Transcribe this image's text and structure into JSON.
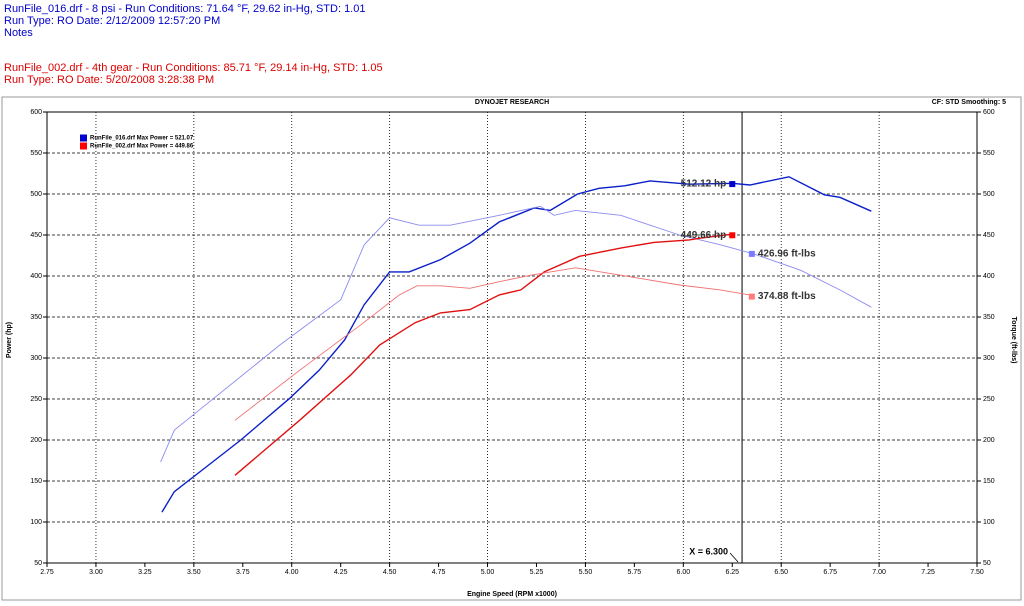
{
  "header": {
    "lines": [
      {
        "text": "RunFile_016.drf - 8 psi  -  Run Conditions: 71.64 °F, 29.62 in-Hg, STD: 1.01",
        "color": "#0000cc"
      },
      {
        "text": "Run Type: RO  Date: 2/12/2009 12:57:20 PM",
        "color": "#0000cc"
      },
      {
        "text": "Notes",
        "color": "#0000cc"
      },
      {
        "text": "RunFile_002.drf - 4th gear  -  Run Conditions: 85.71 °F, 29.14 in-Hg, STD: 1.05",
        "color": "#dd0000"
      },
      {
        "text": "Run Type: RO  Date: 5/20/2008 3:28:38 PM",
        "color": "#dd0000"
      }
    ]
  },
  "chart_data": {
    "type": "line",
    "title": "DYNOJET RESEARCH",
    "subtitle": "CF: STD  Smoothing: 5",
    "x_label": "Engine Speed (RPM x1000)",
    "y_label": "Power (hp)",
    "y2_label": "Torque (ft-lbs)",
    "xlim": [
      2.75,
      7.5
    ],
    "xticks": [
      2.75,
      {
        "value": 3,
        "label": "3.00"
      },
      3.25,
      {
        "value": 3.5,
        "label": "3.50"
      },
      3.75,
      {
        "value": 4,
        "label": "4.00"
      },
      4.25,
      {
        "value": 4.5,
        "label": "4.50"
      },
      4.75,
      {
        "value": 5,
        "label": "5.00"
      },
      5.25,
      {
        "value": 5.5,
        "label": "5.50"
      },
      5.75,
      {
        "value": 6,
        "label": "6.00"
      },
      6.25,
      {
        "value": 6.5,
        "label": "6.50"
      },
      6.75,
      {
        "value": 7,
        "label": "7.00"
      },
      7.25,
      {
        "value": 7.5,
        "label": "7.50"
      }
    ],
    "ylim": [
      50,
      600
    ],
    "yticks": [
      50,
      100,
      150,
      200,
      250,
      300,
      350,
      400,
      450,
      500,
      550,
      600
    ],
    "y2lim": [
      50,
      600
    ],
    "y2ticks": [
      50,
      100,
      150,
      200,
      250,
      300,
      350,
      400,
      450,
      500,
      550,
      600
    ],
    "grid": true,
    "legend": [
      {
        "text": "RunFile_016.drf Max Power = 521.07",
        "color": "#0000cc"
      },
      {
        "text": "RunFile_002.drf Max Power = 449.86",
        "color": "#ff0000"
      }
    ],
    "series": [
      {
        "color": "#0a1fc8",
        "x": [
          3.337,
          3.4,
          3.53,
          3.74,
          3.99,
          4.14,
          4.27,
          4.37,
          4.5,
          4.6,
          4.76,
          4.91,
          5.06,
          5.24,
          5.32,
          5.46,
          5.57,
          5.7,
          5.83,
          6.03,
          6.25,
          6.34,
          6.54,
          6.72,
          6.8,
          6.96
        ],
        "values": [
          112,
          137,
          161,
          200,
          251,
          285,
          322,
          365,
          405,
          405,
          420,
          440,
          466,
          483,
          480,
          500,
          507,
          510,
          516,
          512,
          513,
          511,
          521,
          499,
          496,
          479
        ]
      },
      {
        "color": "#8c8cf0",
        "axis": "y2",
        "x": [
          3.33,
          3.4,
          3.53,
          3.94,
          4.25,
          4.37,
          4.5,
          4.65,
          4.81,
          5.06,
          5.27,
          5.34,
          5.45,
          5.68,
          5.98,
          6.19,
          6.36,
          6.6,
          6.8,
          6.96
        ],
        "values": [
          173,
          212,
          237,
          316,
          371,
          438,
          471,
          462,
          462,
          474,
          485,
          474,
          480,
          474,
          450,
          438,
          427,
          407,
          383,
          362
        ]
      },
      {
        "color": "#e01010",
        "x": [
          3.71,
          4.04,
          4.3,
          4.45,
          4.63,
          4.76,
          4.91,
          5.06,
          5.17,
          5.29,
          5.47,
          5.68,
          5.85,
          6.03,
          6.08,
          6.25
        ],
        "values": [
          157,
          224,
          279,
          316,
          343,
          355,
          359,
          377,
          383,
          405,
          424,
          434,
          441,
          444,
          446,
          451
        ]
      },
      {
        "color": "#f07070",
        "axis": "y2",
        "x": [
          3.71,
          4.04,
          4.35,
          4.55,
          4.64,
          4.76,
          4.91,
          5.06,
          5.22,
          5.45,
          5.68,
          5.98,
          6.19,
          6.36
        ],
        "values": [
          224,
          285,
          340,
          377,
          388,
          388,
          385,
          393,
          401,
          410,
          401,
          389,
          383,
          376
        ]
      }
    ],
    "annotations": [
      {
        "text": "512.12 hp",
        "x": 6.25,
        "y": 512.12,
        "color": "#0000cc"
      },
      {
        "text": "449.66 hp",
        "x": 6.25,
        "y": 449.66,
        "color": "#ff0000"
      },
      {
        "text": "426.96 ft-lbs",
        "x": 6.35,
        "y": 426.96,
        "color": "#7b7bff",
        "axis": "y2"
      },
      {
        "text": "374.88 ft-lbs",
        "x": 6.35,
        "y": 374.88,
        "color": "#ff7b7b",
        "axis": "y2"
      }
    ],
    "cursor": {
      "label": "X = 6.300",
      "x": 6.3
    }
  }
}
